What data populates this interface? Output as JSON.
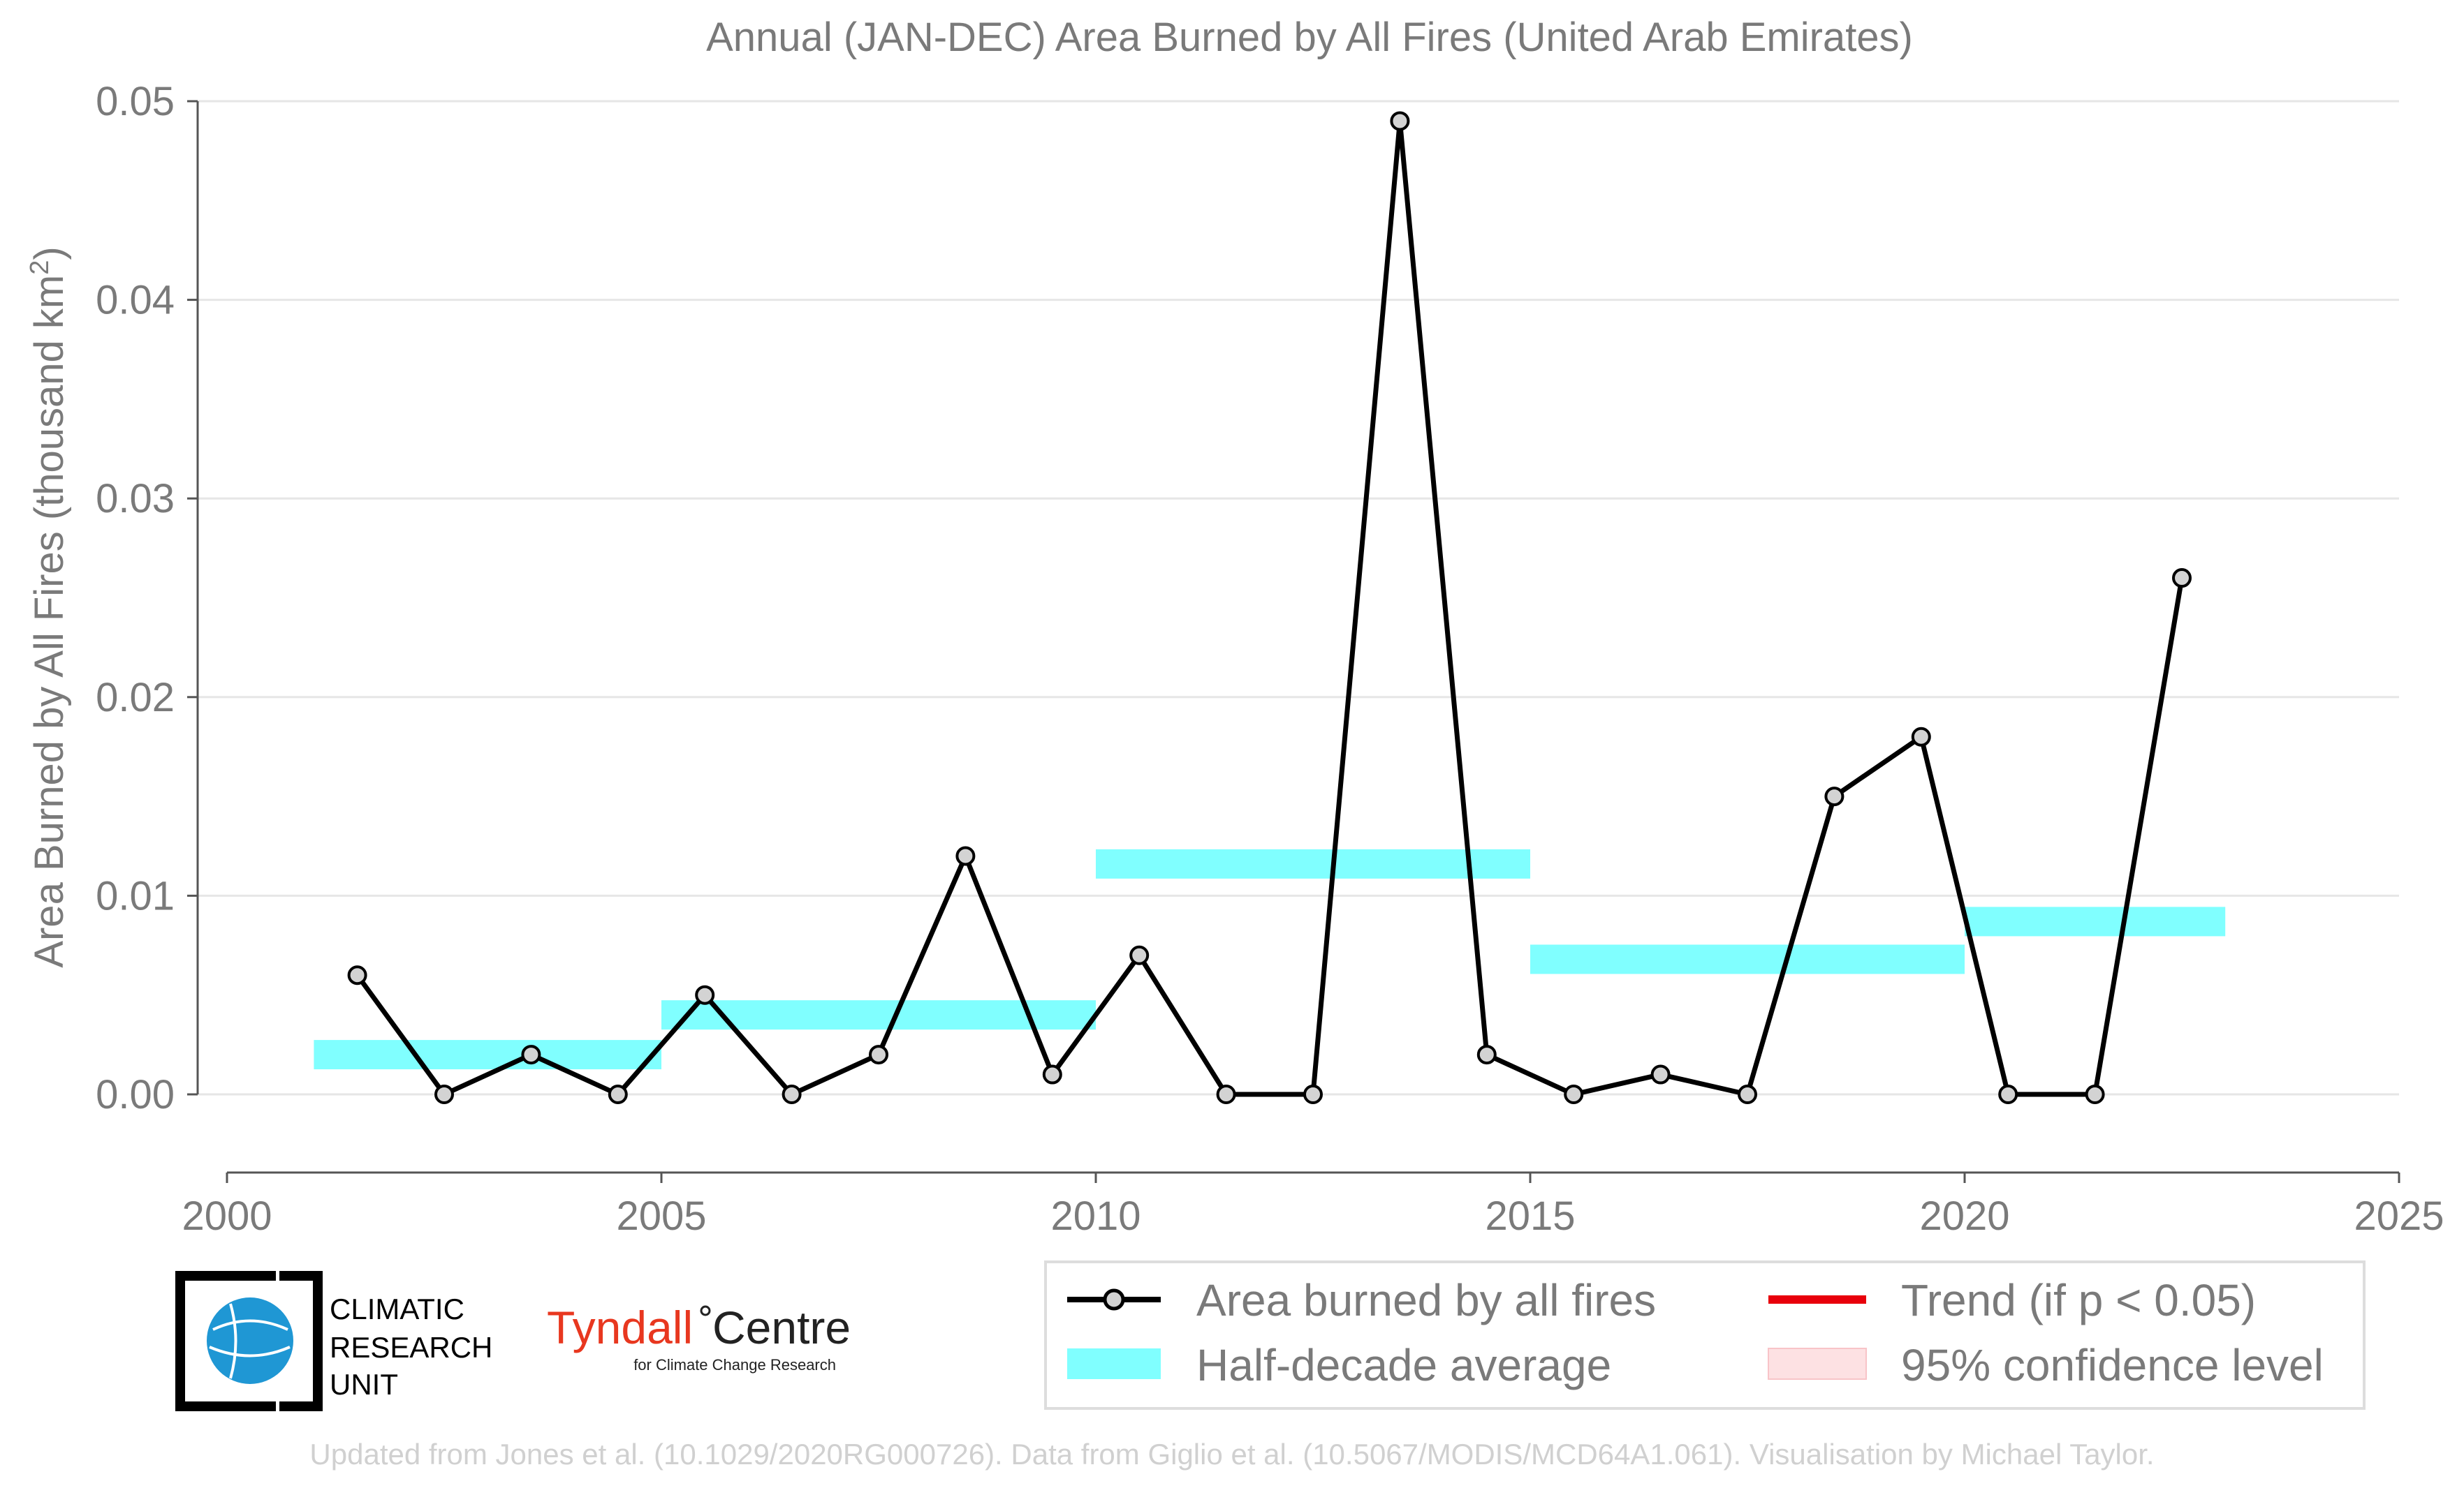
{
  "chart_data": {
    "type": "line",
    "title": "Annual (JAN-DEC) Area Burned by All Fires (United Arab Emirates)",
    "xlabel": "",
    "ylabel": "Area Burned by All Fires (thousand km²)",
    "xlim": [
      2000,
      2025
    ],
    "ylim": [
      -0.004,
      0.05
    ],
    "x_ticks": [
      2000,
      2005,
      2010,
      2015,
      2020,
      2025
    ],
    "y_ticks": [
      0.0,
      0.01,
      0.02,
      0.03,
      0.04,
      0.05
    ],
    "y_tick_labels": [
      "0.00",
      "0.01",
      "0.02",
      "0.03",
      "0.04",
      "0.05"
    ],
    "grid": "horizontal",
    "legend_position": "bottom-right",
    "colors": {
      "line": "#000000",
      "marker_fill": "#d3d3d3",
      "half_decade": "#80ffff",
      "trend": "#e8000b",
      "confidence": "#fde1e3"
    },
    "series": [
      {
        "name": "Area burned by all fires",
        "x": [
          2001,
          2002,
          2003,
          2004,
          2005,
          2006,
          2007,
          2008,
          2009,
          2010,
          2011,
          2012,
          2013,
          2014,
          2015,
          2016,
          2017,
          2018,
          2019,
          2020,
          2021,
          2022
        ],
        "values": [
          0.006,
          0.0,
          0.002,
          0.0,
          0.005,
          0.0,
          0.002,
          0.012,
          0.001,
          0.007,
          0.0,
          0.0,
          0.049,
          0.002,
          0.0,
          0.001,
          0.0,
          0.015,
          0.018,
          0.0,
          0.0,
          0.026
        ]
      }
    ],
    "half_decade_averages": [
      {
        "start": 2001,
        "end": 2005,
        "value": 0.002
      },
      {
        "start": 2005,
        "end": 2010,
        "value": 0.004
      },
      {
        "start": 2010,
        "end": 2015,
        "value": 0.0116
      },
      {
        "start": 2015,
        "end": 2020,
        "value": 0.0068
      },
      {
        "start": 2020,
        "end": 2023,
        "value": 0.0087
      }
    ],
    "legend": [
      {
        "key": "series",
        "label": "Area burned by all fires"
      },
      {
        "key": "trend",
        "label": "Trend (if p < 0.05)"
      },
      {
        "key": "half",
        "label": "Half-decade average"
      },
      {
        "key": "ci",
        "label": "95% confidence level"
      }
    ]
  },
  "logos": {
    "cru": [
      "CLIMATIC",
      "RESEARCH",
      "UNIT"
    ],
    "tyndall_main": "Tyndall",
    "tyndall_centre": "Centre",
    "tyndall_sub": "for Climate Change Research"
  },
  "footer": "Updated from Jones et al. (10.1029/2020RG000726). Data from Giglio et al. (10.5067/MODIS/MCD64A1.061). Visualisation by Michael Taylor."
}
